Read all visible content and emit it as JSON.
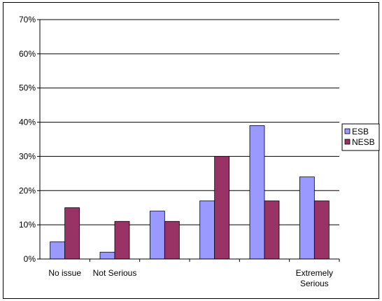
{
  "chart_data": {
    "type": "bar",
    "categories": [
      "No issue",
      "Not Serious",
      "",
      "",
      "",
      "Extremely Serious"
    ],
    "category_lines": [
      [
        "No issue"
      ],
      [
        "Not Serious"
      ],
      [
        ""
      ],
      [
        ""
      ],
      [
        ""
      ],
      [
        "Extremely",
        "Serious"
      ]
    ],
    "series": [
      {
        "name": "ESB",
        "values": [
          5,
          2,
          14,
          17,
          39,
          24
        ],
        "color": "#9999ff"
      },
      {
        "name": "NESB",
        "values": [
          15,
          11,
          11,
          30,
          17,
          17
        ],
        "color": "#993366"
      }
    ],
    "y_ticks": [
      "0%",
      "10%",
      "20%",
      "30%",
      "40%",
      "50%",
      "60%",
      "70%"
    ],
    "ylim": [
      0,
      70
    ],
    "y_unit": "%",
    "grid": true,
    "legend_position": "right",
    "title": "",
    "xlabel": "",
    "ylabel": ""
  }
}
